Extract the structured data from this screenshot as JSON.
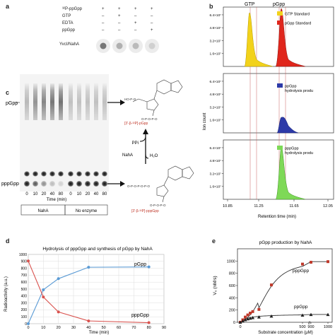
{
  "panel_a": {
    "label": "a",
    "rows": [
      {
        "name": "³²P-ppGpp",
        "marks": [
          "+",
          "+",
          "+",
          "+"
        ]
      },
      {
        "name": "GTP",
        "marks": [
          "–",
          "+",
          "–",
          "–"
        ]
      },
      {
        "name": "EDTA",
        "marks": [
          "–",
          "–",
          "+",
          "–"
        ]
      },
      {
        "name": "ppGpp",
        "marks": [
          "–",
          "–",
          "–",
          "+"
        ]
      }
    ],
    "dot_label": "YvcI/NahA"
  },
  "panel_b": {
    "label": "b",
    "peak_labels": [
      "GTP",
      "pGpp"
    ],
    "ylabel": "Ion count",
    "xlabel": "Retention time (min)",
    "xticks": [
      "10.85",
      "11.25",
      "11.65",
      "12.05"
    ],
    "yticks": [
      "1.6×10⁷",
      "3.2×10⁷",
      "4.8×10⁷",
      "6.4×10⁷"
    ],
    "legend1": [
      "GTP Standard",
      "pGpp Standard"
    ],
    "legend2": "ppGpp hydrolysis product",
    "legend3": "pppGpp hydrolysis product"
  },
  "panel_c": {
    "label": "c",
    "top_band": "pGpp",
    "bottom_band": "pppGpp",
    "lane_times": [
      "0",
      "10",
      "20",
      "40",
      "80",
      "0",
      "10",
      "20",
      "40",
      "80"
    ],
    "xlabel": "Time (min)",
    "group1": "NahA",
    "group2": "No enzyme",
    "chem_top_label": "[3'-β-³²P]-pGpp",
    "chem_bottom_label": "[3'-β-³²P]-pppGpp",
    "enzyme": "NahA",
    "water": "H₂O",
    "byproduct": "PPi"
  },
  "panel_d": {
    "label": "d",
    "chart_data": {
      "type": "line",
      "title": "Hydrolysis of pppGpp and synthesis of pGpp by NahA",
      "xlabel": "Time (min)",
      "ylabel": "Radioactivity (a.u.)",
      "xlim": [
        0,
        90
      ],
      "ylim": [
        0,
        1000
      ],
      "xticks": [
        0,
        10,
        20,
        30,
        40,
        50,
        60,
        70,
        80,
        90
      ],
      "yticks": [
        0,
        100,
        200,
        300,
        400,
        500,
        600,
        700,
        800,
        900,
        1000
      ],
      "grid": true,
      "x": [
        0,
        10,
        20,
        40,
        80
      ],
      "series": [
        {
          "name": "pGpp",
          "values": [
            0,
            490,
            650,
            815,
            820
          ],
          "color": "#5b9bd5"
        },
        {
          "name": "pppGpp",
          "values": [
            905,
            385,
            170,
            40,
            15
          ],
          "color": "#d9534f"
        }
      ]
    }
  },
  "panel_e": {
    "label": "e",
    "chart_data": {
      "type": "scatter",
      "title": "pGpp production by NahA",
      "xlabel": "Substrate concentration (μM)",
      "ylabel": "V₀ (nM/s)",
      "ylim": [
        0,
        1200
      ],
      "yticks": [
        0,
        200,
        400,
        600,
        800,
        1000
      ],
      "xticks": [
        "0",
        "500",
        "900",
        "1000"
      ],
      "series": [
        {
          "name": "pppGpp",
          "x": [
            0,
            20,
            40,
            60,
            80,
            100,
            150,
            250,
            500,
            900,
            1000
          ],
          "values": [
            0,
            40,
            85,
            120,
            150,
            175,
            210,
            610,
            950,
            980,
            990
          ],
          "color": "#c0392b"
        },
        {
          "name": "ppGpp",
          "x": [
            0,
            20,
            40,
            60,
            80,
            100,
            150,
            250,
            500,
            900,
            1000
          ],
          "values": [
            0,
            20,
            40,
            55,
            65,
            75,
            85,
            100,
            115,
            125,
            125
          ],
          "color": "#222222"
        }
      ],
      "curve_labels": [
        "pppGpp",
        "ppGpp"
      ]
    }
  }
}
